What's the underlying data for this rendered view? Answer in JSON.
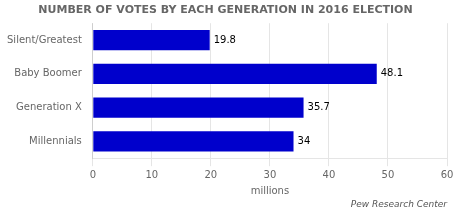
{
  "chart_data": {
    "type": "bar",
    "orientation": "horizontal",
    "title": "NUMBER OF VOTES BY EACH GENERATION IN 2016 ELECTION",
    "categories": [
      "Silent/Greatest",
      "Baby Boomer",
      "Generation X",
      "Millennials"
    ],
    "values": [
      19.8,
      48.1,
      35.7,
      34
    ],
    "color": "#0000CC",
    "xlabel": "millions",
    "xlim": [
      0,
      60
    ],
    "xticks": [
      0,
      10,
      20,
      30,
      40,
      50,
      60
    ],
    "grid": true,
    "data_labels": true,
    "annotation": "Pew Research Center"
  }
}
